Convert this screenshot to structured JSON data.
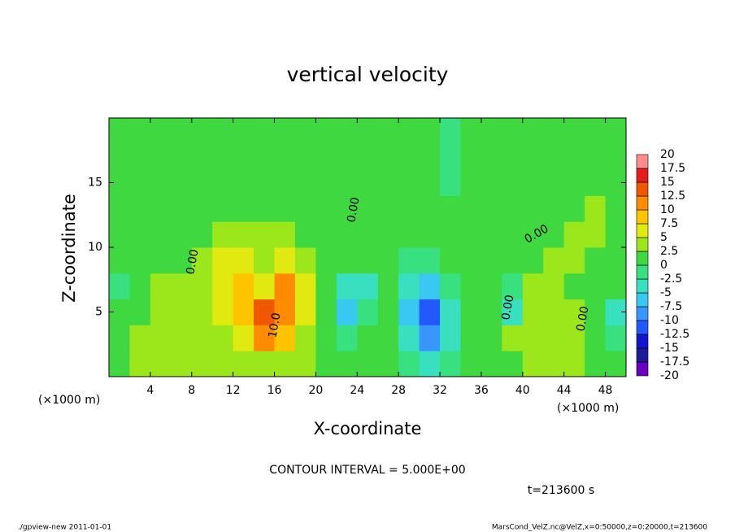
{
  "chart_data": {
    "type": "contour",
    "title": "vertical velocity",
    "x_label": "X-coordinate",
    "y_label": "Z-coordinate",
    "x_unit": "(×1000 m)",
    "contour_interval_text": "CONTOUR INTERVAL = 5.000E+00",
    "time_text": "t=213600 s",
    "footer_left": "./gpview-new   2011-01-01",
    "footer_right": "MarsCond_VelZ.nc@VelZ,x=0:50000,z=0:20000,t=213600",
    "contour_labels": [
      "10.0",
      "0.00",
      "0.00",
      "0.00",
      "0.00",
      "0.00"
    ],
    "xlim": [
      0,
      50
    ],
    "ylim": [
      0,
      20
    ],
    "xticks": [
      4,
      8,
      12,
      16,
      20,
      24,
      28,
      32,
      36,
      40,
      44,
      48
    ],
    "yticks": [
      5,
      10,
      15
    ],
    "x": [
      1,
      3,
      5,
      7,
      9,
      11,
      13,
      15,
      17,
      19,
      21,
      23,
      25,
      27,
      29,
      31,
      33,
      35,
      37,
      39,
      41,
      43,
      45,
      47,
      49
    ],
    "y": [
      1,
      3,
      5,
      7,
      9,
      11,
      13,
      15,
      17,
      19
    ],
    "z": [
      [
        2,
        3,
        3,
        3,
        4,
        4,
        3,
        4,
        3,
        3,
        2,
        1,
        1,
        0,
        -1,
        -3,
        -1,
        1,
        1,
        2,
        3,
        3,
        3,
        2,
        1
      ],
      [
        2,
        3,
        3,
        4,
        4,
        4,
        6,
        12,
        8,
        4,
        2,
        -1,
        1,
        0,
        -4,
        -8,
        -3,
        2,
        2,
        3,
        4,
        4,
        3,
        2,
        -1
      ],
      [
        1,
        2,
        3,
        3,
        4,
        5,
        8,
        13,
        11,
        5,
        2,
        -6,
        -2,
        1,
        -7,
        -11,
        -4,
        2,
        1,
        -3,
        3,
        4,
        3,
        1,
        -4
      ],
      [
        -1,
        2,
        3,
        3,
        3,
        6,
        9,
        7,
        12,
        5,
        2,
        -4,
        -3,
        0,
        -5,
        -7,
        -2,
        0,
        1,
        -1,
        3,
        3,
        2,
        1,
        1
      ],
      [
        1,
        1,
        2,
        2,
        3,
        6,
        7,
        3,
        6,
        4,
        2,
        1,
        1,
        1,
        -2,
        -2,
        0,
        1,
        2,
        1,
        2,
        3,
        3,
        2,
        1
      ],
      [
        1,
        1,
        2,
        2,
        2,
        3,
        4,
        3,
        3,
        2,
        1,
        1,
        1,
        1,
        1,
        0,
        0,
        1,
        1,
        2,
        2,
        2,
        3,
        3,
        2
      ],
      [
        1,
        1,
        1,
        2,
        1,
        1,
        2,
        2,
        2,
        1,
        1,
        1,
        1,
        1,
        1,
        1,
        0,
        1,
        1,
        1,
        1,
        2,
        2,
        3,
        2
      ],
      [
        1,
        1,
        1,
        1,
        1,
        1,
        1,
        1,
        1,
        1,
        1,
        1,
        1,
        1,
        1,
        0,
        -1,
        1,
        1,
        1,
        1,
        1,
        1,
        2,
        1
      ],
      [
        1,
        1,
        1,
        1,
        1,
        1,
        1,
        1,
        1,
        1,
        1,
        1,
        1,
        1,
        1,
        0,
        -2,
        0,
        1,
        1,
        1,
        1,
        1,
        1,
        1
      ],
      [
        1,
        0,
        1,
        1,
        1,
        1,
        1,
        1,
        1,
        1,
        1,
        1,
        1,
        1,
        1,
        0,
        -1,
        0,
        0,
        1,
        1,
        1,
        1,
        1,
        1
      ]
    ],
    "levels": [
      -20,
      -17.5,
      -15,
      -12.5,
      -10,
      -7.5,
      -5,
      -2.5,
      0,
      2.5,
      5,
      7.5,
      10,
      12.5,
      15,
      17.5,
      20
    ],
    "colors": [
      "#6a00c0",
      "#1c1c98",
      "#1414d0",
      "#2458ff",
      "#3a96ff",
      "#38c8f0",
      "#38e0c0",
      "#38e080",
      "#40d840",
      "#9ce61c",
      "#e0ea10",
      "#ffc400",
      "#ff8c00",
      "#f05800",
      "#e41e1e",
      "#ff8c8c"
    ]
  }
}
